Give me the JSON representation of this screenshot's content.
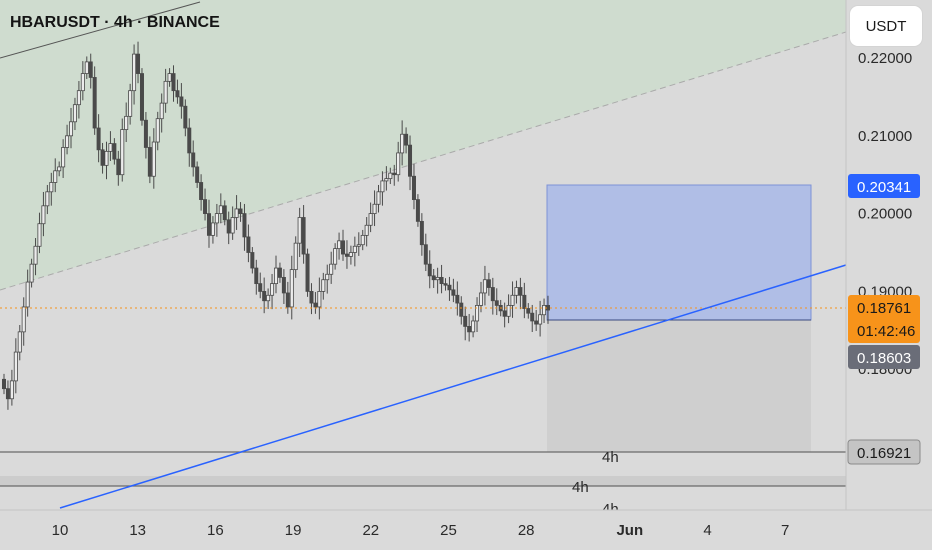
{
  "header": {
    "title": "HBARUSDT · 4h · BINANCE",
    "currency_button": "USDT"
  },
  "colors": {
    "background": "#dadada",
    "channel_fill": "#cfdccf",
    "trendline": "#2962ff",
    "profit_zone": "#b0bee6",
    "loss_zone": "#cfcfcf",
    "candle": "#4a4a4a",
    "price_line": "#f7931a",
    "badge_blue": "#2962ff",
    "badge_orange": "#f7931a",
    "badge_gray": "#6a6d78"
  },
  "chart_data": {
    "type": "candlestick",
    "symbol": "HBARUSDT",
    "interval": "4h",
    "exchange": "BINANCE",
    "y_ticks": [
      "0.22000",
      "0.21000",
      "0.20000",
      "0.19000",
      "0.18000"
    ],
    "y_tick_values": [
      0.22,
      0.21,
      0.2,
      0.19,
      0.18
    ],
    "ylim": [
      0.1615,
      0.2245
    ],
    "x_ticks": [
      "10",
      "13",
      "16",
      "19",
      "22",
      "25",
      "28",
      "Jun",
      "4",
      "7"
    ],
    "x_tick_day_index": [
      0,
      3,
      6,
      9,
      12,
      15,
      18,
      22,
      25,
      28
    ],
    "badges": [
      {
        "name": "take-profit",
        "value": "0.20341"
      },
      {
        "name": "current-price",
        "value": "0.18761",
        "countdown": "01:42:46"
      },
      {
        "name": "stop-loss",
        "value": "0.18603"
      },
      {
        "name": "support",
        "value": "0.16921"
      }
    ],
    "horizontal_labels": [
      "4h",
      "4h",
      "4h"
    ],
    "closes": [
      0.1775,
      0.1762,
      0.1785,
      0.1822,
      0.1848,
      0.188,
      0.1912,
      0.1935,
      0.1958,
      0.1987,
      0.201,
      0.2028,
      0.204,
      0.2055,
      0.206,
      0.2085,
      0.21,
      0.2118,
      0.214,
      0.2158,
      0.218,
      0.2195,
      0.2175,
      0.211,
      0.2082,
      0.2062,
      0.208,
      0.209,
      0.207,
      0.205,
      0.2108,
      0.2125,
      0.2158,
      0.2205,
      0.218,
      0.212,
      0.2085,
      0.2048,
      0.2092,
      0.2122,
      0.2142,
      0.217,
      0.218,
      0.2158,
      0.215,
      0.2138,
      0.211,
      0.2078,
      0.206,
      0.204,
      0.2018,
      0.2,
      0.1972,
      0.1988,
      0.2,
      0.201,
      0.1992,
      0.1975,
      0.1995,
      0.2006,
      0.2,
      0.197,
      0.195,
      0.193,
      0.191,
      0.19,
      0.1888,
      0.1895,
      0.191,
      0.193,
      0.1918,
      0.1898,
      0.188,
      0.1928,
      0.1962,
      0.1995,
      0.1948,
      0.19,
      0.1885,
      0.188,
      0.19,
      0.1915,
      0.1922,
      0.1935,
      0.1955,
      0.1965,
      0.1948,
      0.1945,
      0.195,
      0.1958,
      0.196,
      0.1972,
      0.1985,
      0.2,
      0.2012,
      0.2028,
      0.2042,
      0.2045,
      0.2052,
      0.205,
      0.2078,
      0.2102,
      0.2088,
      0.2048,
      0.2018,
      0.199,
      0.196,
      0.1935,
      0.192,
      0.1915,
      0.1918,
      0.191,
      0.1908,
      0.1902,
      0.1895,
      0.1885,
      0.1868,
      0.1855,
      0.1848,
      0.1862,
      0.1882,
      0.1898,
      0.1915,
      0.1905,
      0.1888,
      0.1882,
      0.1875,
      0.1868,
      0.1882,
      0.1895,
      0.1905,
      0.1895,
      0.1878,
      0.1872,
      0.1862,
      0.1858,
      0.187,
      0.1882,
      0.1876
    ]
  }
}
